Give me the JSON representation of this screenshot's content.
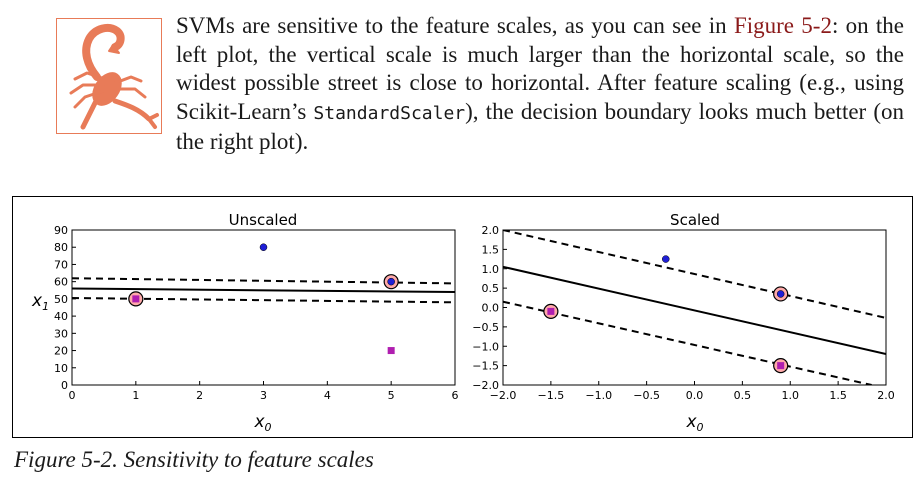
{
  "note": {
    "icon": "scorpion-icon",
    "icon_color": "#e87b58",
    "text_1": "SVMs are sensitive to the feature scales, as you can see in ",
    "link": "Figure 5-2",
    "text_2": ": on the left plot, the vertical scale is much larger than the horizontal scale, so the widest possible street is close to horizontal. After feature scaling (e.g., using Scikit-Learn’s ",
    "code": "StandardScaler",
    "text_3": "), the decision boundary looks much better (on the right plot)."
  },
  "caption": "Figure 5-2. Sensitivity to feature scales",
  "chart_data": [
    {
      "type": "scatter",
      "title": "Unscaled",
      "xlabel": "x0",
      "ylabel": "x1",
      "xlim": [
        0,
        6
      ],
      "ylim": [
        0,
        90
      ],
      "xticks": [
        "0",
        "1",
        "2",
        "3",
        "4",
        "5",
        "6"
      ],
      "yticks": [
        "0",
        "10",
        "20",
        "30",
        "40",
        "50",
        "60",
        "70",
        "80",
        "90"
      ],
      "points": [
        {
          "x": 1,
          "y": 50,
          "class": "square",
          "support_vector": true
        },
        {
          "x": 5,
          "y": 20,
          "class": "square",
          "support_vector": false
        },
        {
          "x": 3,
          "y": 80,
          "class": "circle",
          "support_vector": false
        },
        {
          "x": 5,
          "y": 60,
          "class": "circle",
          "support_vector": true
        }
      ],
      "lines": [
        {
          "style": "solid",
          "x": [
            0,
            6
          ],
          "y": [
            56,
            54
          ]
        },
        {
          "style": "dashed",
          "x": [
            0,
            6
          ],
          "y": [
            62,
            59
          ]
        },
        {
          "style": "dashed",
          "x": [
            0,
            6
          ],
          "y": [
            50.5,
            48
          ]
        }
      ]
    },
    {
      "type": "scatter",
      "title": "Scaled",
      "xlabel": "x0",
      "ylabel": "",
      "xlim": [
        -2,
        2
      ],
      "ylim": [
        -2,
        2
      ],
      "xticks": [
        "−2.0",
        "−1.5",
        "−1.0",
        "−0.5",
        "0.0",
        "0.5",
        "1.0",
        "1.5",
        "2.0"
      ],
      "yticks": [
        "−2.0",
        "−1.5",
        "−1.0",
        "−0.5",
        "0.0",
        "0.5",
        "1.0",
        "1.5",
        "2.0"
      ],
      "points": [
        {
          "x": -1.5,
          "y": -0.1,
          "class": "square",
          "support_vector": true
        },
        {
          "x": 0.9,
          "y": -1.5,
          "class": "square",
          "support_vector": true
        },
        {
          "x": -0.3,
          "y": 1.25,
          "class": "circle",
          "support_vector": false
        },
        {
          "x": 0.9,
          "y": 0.35,
          "class": "circle",
          "support_vector": true
        }
      ],
      "lines": [
        {
          "style": "solid",
          "x": [
            -2,
            2
          ],
          "y": [
            1.05,
            -1.2
          ]
        },
        {
          "style": "dashed",
          "x": [
            -2,
            2
          ],
          "y": [
            2.0,
            -0.27
          ]
        },
        {
          "style": "dashed",
          "x": [
            -2,
            1.85
          ],
          "y": [
            0.15,
            -2.0
          ]
        }
      ]
    }
  ],
  "colors": {
    "circle": "#1f1fd6",
    "square": "#b01eb0",
    "support_vector": "#ffaaaa",
    "link": "#8b1a1a"
  }
}
